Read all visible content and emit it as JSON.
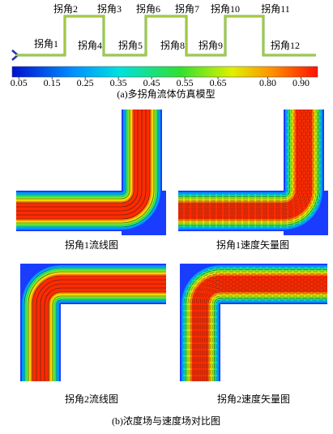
{
  "schematic": {
    "bends": [
      "拐角1",
      "拐角2",
      "拐角3",
      "拐角4",
      "拐角5",
      "拐角6",
      "拐角7",
      "拐角8",
      "拐角9",
      "拐角10",
      "拐角11",
      "拐角12"
    ]
  },
  "colorbar": {
    "range": [
      0.03,
      0.95
    ],
    "ticks": [
      0.05,
      0.15,
      0.25,
      0.35,
      0.45,
      0.55,
      0.65,
      {
        "value": 0.8,
        "label": "0.80"
      },
      {
        "value": 0.9,
        "label": "0.90"
      }
    ]
  },
  "captions": {
    "a": "(a)多拐角流体仿真模型",
    "panels": [
      "拐角1流线图",
      "拐角1速度矢量图",
      "拐角2流线图",
      "拐角2速度矢量图"
    ],
    "b": "(b)浓度场与速度场对比图"
  }
}
